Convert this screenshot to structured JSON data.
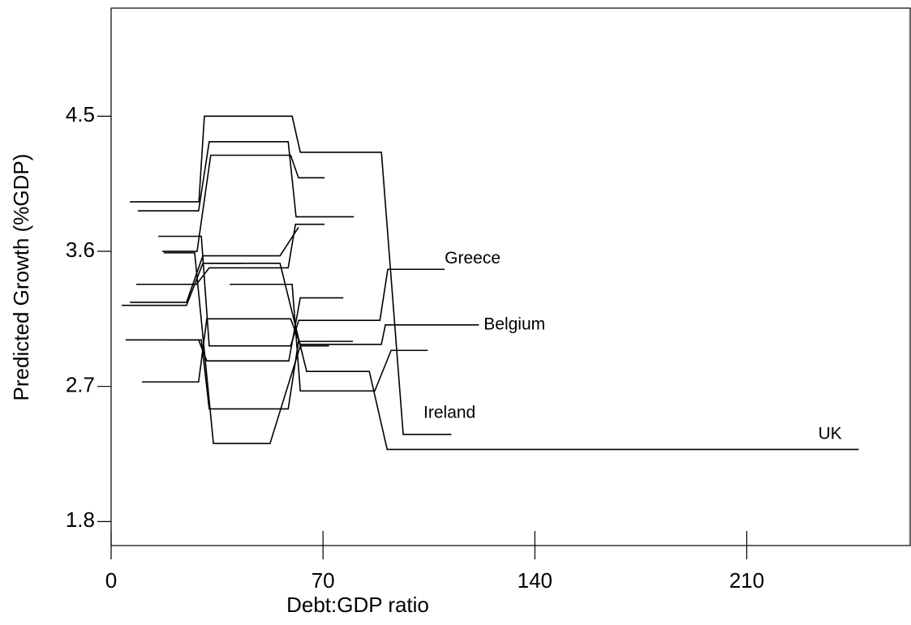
{
  "chart_data": {
    "type": "line",
    "xlabel": "Debt:GDP ratio",
    "ylabel": "Predicted Growth (%GDP)",
    "color": "#000000",
    "xlim": [
      0,
      264
    ],
    "ylim": [
      1.64,
      5.22
    ],
    "xticks": [
      0,
      70,
      140,
      210
    ],
    "yticks": [
      1.8,
      2.7,
      3.6,
      4.5
    ],
    "series": [
      {
        "x": [
          6.2,
          29,
          30.8,
          59.8,
          62.5,
          89.3,
          96.5,
          112.4
        ],
        "values": [
          3.93,
          3.93,
          4.5,
          4.5,
          4.26,
          4.26,
          2.38,
          2.38
        ]
      },
      {
        "x": [
          15.6,
          29.8,
          32.4,
          59.3,
          62,
          88.8,
          91.4,
          110.2
        ],
        "values": [
          3.7,
          3.7,
          2.97,
          2.97,
          3.14,
          3.14,
          3.48,
          3.48
        ]
      },
      {
        "x": [
          10.2,
          28.9,
          31.6,
          59.3,
          62.5,
          89.3,
          90.6,
          121.5
        ],
        "values": [
          2.73,
          2.73,
          3.15,
          3.15,
          2.98,
          2.98,
          3.11,
          3.11
        ]
      },
      {
        "x": [
          3.5,
          24.9,
          30.3,
          55.8,
          64.6,
          85.3,
          91.2,
          247
        ],
        "values": [
          3.24,
          3.24,
          3.52,
          3.52,
          2.8,
          2.8,
          2.28,
          2.28
        ]
      },
      {
        "x": [
          8.8,
          28.9,
          32.4,
          58.5,
          61.1,
          80.2
        ],
        "values": [
          3.87,
          3.87,
          4.33,
          4.33,
          3.83,
          3.83
        ]
      },
      {
        "x": [
          16.9,
          28.4,
          32.9,
          59.3,
          61.9,
          70.5
        ],
        "values": [
          3.6,
          3.6,
          4.24,
          4.24,
          4.09,
          4.09
        ]
      },
      {
        "x": [
          8.3,
          28.2,
          32.4,
          58.5,
          60.9,
          70.5
        ],
        "values": [
          3.38,
          3.38,
          3.49,
          3.49,
          3.78,
          3.78
        ]
      },
      {
        "x": [
          6.2,
          24.9,
          30.3,
          55.8,
          61.9
        ],
        "values": [
          3.26,
          3.26,
          3.57,
          3.57,
          3.76
        ]
      },
      {
        "x": [
          4.8,
          28.9,
          31.6,
          58.7,
          62.5,
          76.7
        ],
        "values": [
          3.01,
          3.01,
          2.87,
          2.87,
          3.29,
          3.29
        ]
      },
      {
        "x": [
          19.6,
          29.8,
          32.4,
          58.5,
          61.9,
          79.9
        ],
        "values": [
          3.01,
          3.01,
          2.55,
          2.55,
          3.0,
          3.0
        ]
      },
      {
        "x": [
          39.2,
          59.8,
          62.5,
          87.1,
          92.5,
          104.6
        ],
        "values": [
          3.38,
          3.38,
          2.67,
          2.67,
          2.94,
          2.94
        ]
      },
      {
        "x": [
          17.4,
          27.6,
          33.8,
          52.5,
          62.5,
          72
        ],
        "values": [
          3.59,
          3.59,
          2.32,
          2.32,
          2.97,
          2.97
        ]
      },
      {
        "x": [
          32.4,
          43.7
        ],
        "values": [
          3.52,
          3.52
        ]
      }
    ],
    "annotations": [
      {
        "text": "Greece",
        "x": 110.2,
        "y": 3.55
      },
      {
        "text": "Belgium",
        "x": 123.1,
        "y": 3.11
      },
      {
        "text": "Ireland",
        "x": 103.2,
        "y": 2.52
      },
      {
        "text": "UK",
        "x": 233.6,
        "y": 2.38
      }
    ]
  }
}
